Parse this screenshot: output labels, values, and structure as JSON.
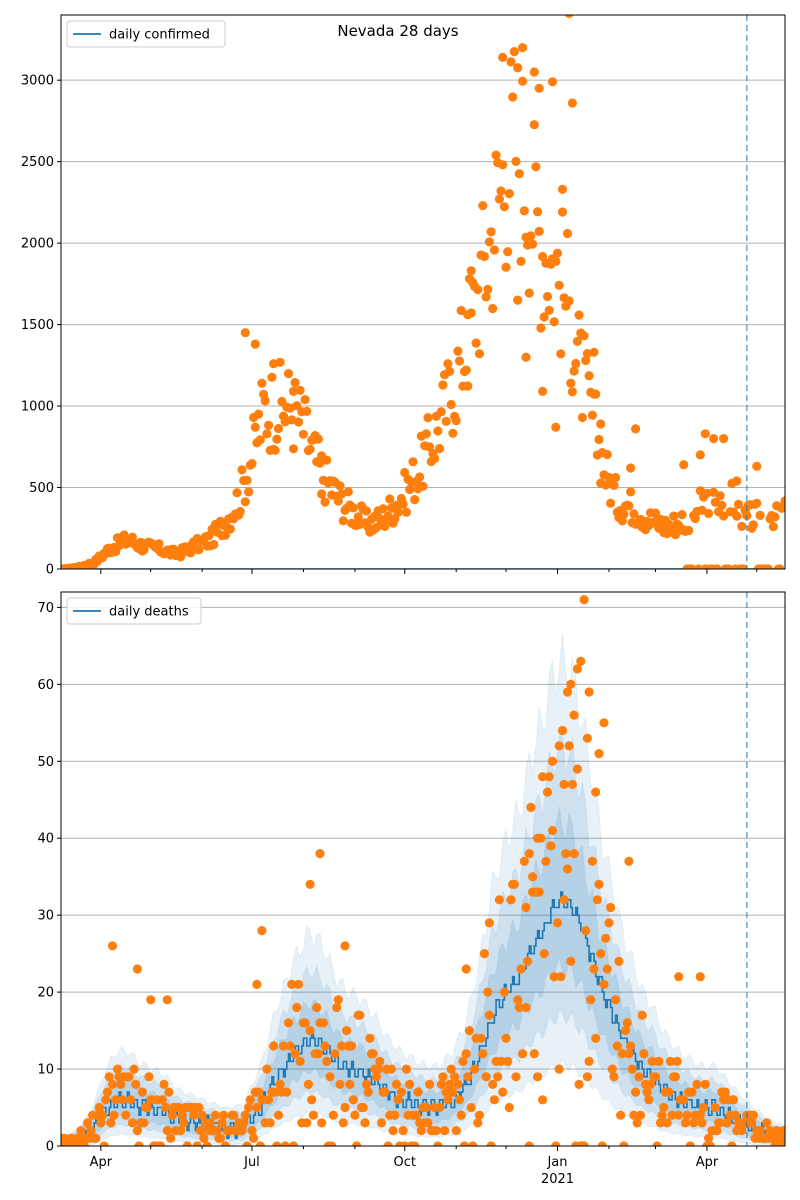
{
  "figure_title": "Nevada 28 days",
  "colors": {
    "line": "#1f77b4",
    "points": "#ff7f0e",
    "band": "#1f77b4",
    "grid": "#b0b0b0",
    "marker_line": "#1f77b4"
  },
  "chart_data": [
    {
      "type": "scatter",
      "title": "",
      "legend": {
        "label": "daily confirmed",
        "position": "top-left"
      },
      "ylim": [
        0,
        3400
      ],
      "yticks": [
        0,
        500,
        1000,
        1500,
        2000,
        2500,
        3000
      ],
      "grid": "y",
      "x_range_days": [
        0,
        436
      ],
      "xticks": [
        {
          "day": 24,
          "label": "Apr",
          "major": true
        },
        {
          "day": 54,
          "label": "",
          "major": false
        },
        {
          "day": 85,
          "label": "",
          "major": false
        },
        {
          "day": 115,
          "label": "Jul",
          "major": true
        },
        {
          "day": 146,
          "label": "",
          "major": false
        },
        {
          "day": 177,
          "label": "",
          "major": false
        },
        {
          "day": 207,
          "label": "Oct",
          "major": true
        },
        {
          "day": 238,
          "label": "",
          "major": false
        },
        {
          "day": 268,
          "label": "",
          "major": false
        },
        {
          "day": 299,
          "label": "Jan",
          "sublabel": "2021",
          "major": true
        },
        {
          "day": 330,
          "label": "",
          "major": false
        },
        {
          "day": 358,
          "label": "",
          "major": false
        },
        {
          "day": 389,
          "label": "Apr",
          "major": true
        },
        {
          "day": 419,
          "label": "",
          "major": false
        }
      ],
      "vline_day": 413,
      "anchors": [
        [
          0,
          0
        ],
        [
          10,
          10
        ],
        [
          20,
          40
        ],
        [
          30,
          130
        ],
        [
          40,
          180
        ],
        [
          50,
          140
        ],
        [
          60,
          120
        ],
        [
          70,
          90
        ],
        [
          80,
          140
        ],
        [
          90,
          180
        ],
        [
          100,
          300
        ],
        [
          108,
          450
        ],
        [
          115,
          700
        ],
        [
          122,
          980
        ],
        [
          130,
          1000
        ],
        [
          138,
          1000
        ],
        [
          145,
          900
        ],
        [
          152,
          700
        ],
        [
          160,
          540
        ],
        [
          168,
          430
        ],
        [
          176,
          350
        ],
        [
          184,
          280
        ],
        [
          192,
          300
        ],
        [
          200,
          380
        ],
        [
          208,
          480
        ],
        [
          216,
          620
        ],
        [
          224,
          800
        ],
        [
          232,
          1000
        ],
        [
          240,
          1250
        ],
        [
          248,
          1550
        ],
        [
          256,
          1900
        ],
        [
          262,
          2200
        ],
        [
          268,
          2500
        ],
        [
          274,
          2650
        ],
        [
          280,
          2450
        ],
        [
          286,
          2150
        ],
        [
          292,
          1950
        ],
        [
          298,
          1850
        ],
        [
          304,
          1700
        ],
        [
          310,
          1350
        ],
        [
          316,
          1100
        ],
        [
          322,
          850
        ],
        [
          328,
          600
        ],
        [
          335,
          420
        ],
        [
          345,
          380
        ],
        [
          355,
          300
        ],
        [
          365,
          260
        ],
        [
          375,
          300
        ],
        [
          385,
          380
        ],
        [
          395,
          450
        ],
        [
          405,
          420
        ],
        [
          413,
          310
        ],
        [
          420,
          320
        ],
        [
          430,
          300
        ],
        [
          436,
          350
        ]
      ],
      "outliers": [
        [
          111,
          1450
        ],
        [
          117,
          1380
        ],
        [
          128,
          1260
        ],
        [
          140,
          1090
        ],
        [
          157,
          460
        ],
        [
          245,
          1560
        ],
        [
          266,
          3140
        ],
        [
          278,
          3200
        ],
        [
          285,
          3050
        ],
        [
          288,
          2950
        ],
        [
          296,
          2990
        ],
        [
          302,
          2330
        ],
        [
          306,
          3410
        ],
        [
          308,
          2860
        ],
        [
          280,
          1300
        ],
        [
          290,
          1090
        ],
        [
          298,
          870
        ],
        [
          275,
          1650
        ],
        [
          247,
          1830
        ],
        [
          321,
          1330
        ],
        [
          325,
          890
        ],
        [
          343,
          620
        ],
        [
          346,
          860
        ],
        [
          375,
          640
        ],
        [
          385,
          700
        ],
        [
          388,
          830
        ],
        [
          399,
          800
        ],
        [
          393,
          800
        ],
        [
          407,
          540
        ],
        [
          419,
          630
        ]
      ],
      "zero_runs": [
        [
          375,
          413
        ],
        [
          419,
          436
        ]
      ]
    },
    {
      "type": "scatter",
      "title": "",
      "legend": {
        "label": "daily deaths",
        "position": "top-left"
      },
      "ylim": [
        0,
        72
      ],
      "yticks": [
        0,
        10,
        20,
        30,
        40,
        50,
        60,
        70
      ],
      "grid": "y",
      "x_range_days": [
        0,
        436
      ],
      "vline_day": 413,
      "anchors": [
        [
          0,
          0.3
        ],
        [
          10,
          0.8
        ],
        [
          18,
          2
        ],
        [
          26,
          4.5
        ],
        [
          33,
          6
        ],
        [
          40,
          6
        ],
        [
          48,
          5.2
        ],
        [
          55,
          4.8
        ],
        [
          62,
          4.5
        ],
        [
          70,
          3.5
        ],
        [
          80,
          3
        ],
        [
          90,
          2.6
        ],
        [
          100,
          2.2
        ],
        [
          110,
          2.5
        ],
        [
          120,
          5
        ],
        [
          130,
          9
        ],
        [
          140,
          12
        ],
        [
          150,
          14
        ],
        [
          158,
          13
        ],
        [
          165,
          11
        ],
        [
          172,
          10
        ],
        [
          180,
          9.5
        ],
        [
          188,
          8.5
        ],
        [
          196,
          7
        ],
        [
          204,
          6
        ],
        [
          212,
          5.5
        ],
        [
          220,
          5
        ],
        [
          228,
          5
        ],
        [
          236,
          6
        ],
        [
          244,
          8
        ],
        [
          252,
          12
        ],
        [
          260,
          17
        ],
        [
          268,
          20
        ],
        [
          276,
          22
        ],
        [
          284,
          26
        ],
        [
          290,
          28
        ],
        [
          296,
          31
        ],
        [
          302,
          32
        ],
        [
          308,
          31
        ],
        [
          314,
          28
        ],
        [
          320,
          24
        ],
        [
          326,
          20
        ],
        [
          332,
          17
        ],
        [
          338,
          14
        ],
        [
          344,
          12
        ],
        [
          350,
          10
        ],
        [
          356,
          9
        ],
        [
          362,
          7.5
        ],
        [
          370,
          6.2
        ],
        [
          378,
          5.5
        ],
        [
          386,
          5
        ],
        [
          394,
          5
        ],
        [
          402,
          4
        ],
        [
          410,
          3
        ],
        [
          418,
          2.2
        ],
        [
          426,
          1.5
        ],
        [
          436,
          1
        ]
      ],
      "outliers": [
        [
          31,
          26
        ],
        [
          46,
          23
        ],
        [
          54,
          19
        ],
        [
          64,
          19
        ],
        [
          118,
          21
        ],
        [
          121,
          28
        ],
        [
          150,
          34
        ],
        [
          156,
          38
        ],
        [
          171,
          26
        ],
        [
          282,
          38
        ],
        [
          287,
          40
        ],
        [
          290,
          48
        ],
        [
          296,
          41
        ],
        [
          300,
          52
        ],
        [
          303,
          47
        ],
        [
          305,
          59
        ],
        [
          307,
          60
        ],
        [
          309,
          56
        ],
        [
          311,
          62
        ],
        [
          313,
          63
        ],
        [
          315,
          71
        ],
        [
          317,
          53
        ],
        [
          318,
          59
        ],
        [
          322,
          46
        ],
        [
          324,
          51
        ],
        [
          327,
          55
        ],
        [
          342,
          37
        ],
        [
          372,
          22
        ],
        [
          385,
          22
        ],
        [
          244,
          23
        ],
        [
          258,
          29
        ],
        [
          280,
          31
        ],
        [
          284,
          35
        ]
      ]
    }
  ]
}
